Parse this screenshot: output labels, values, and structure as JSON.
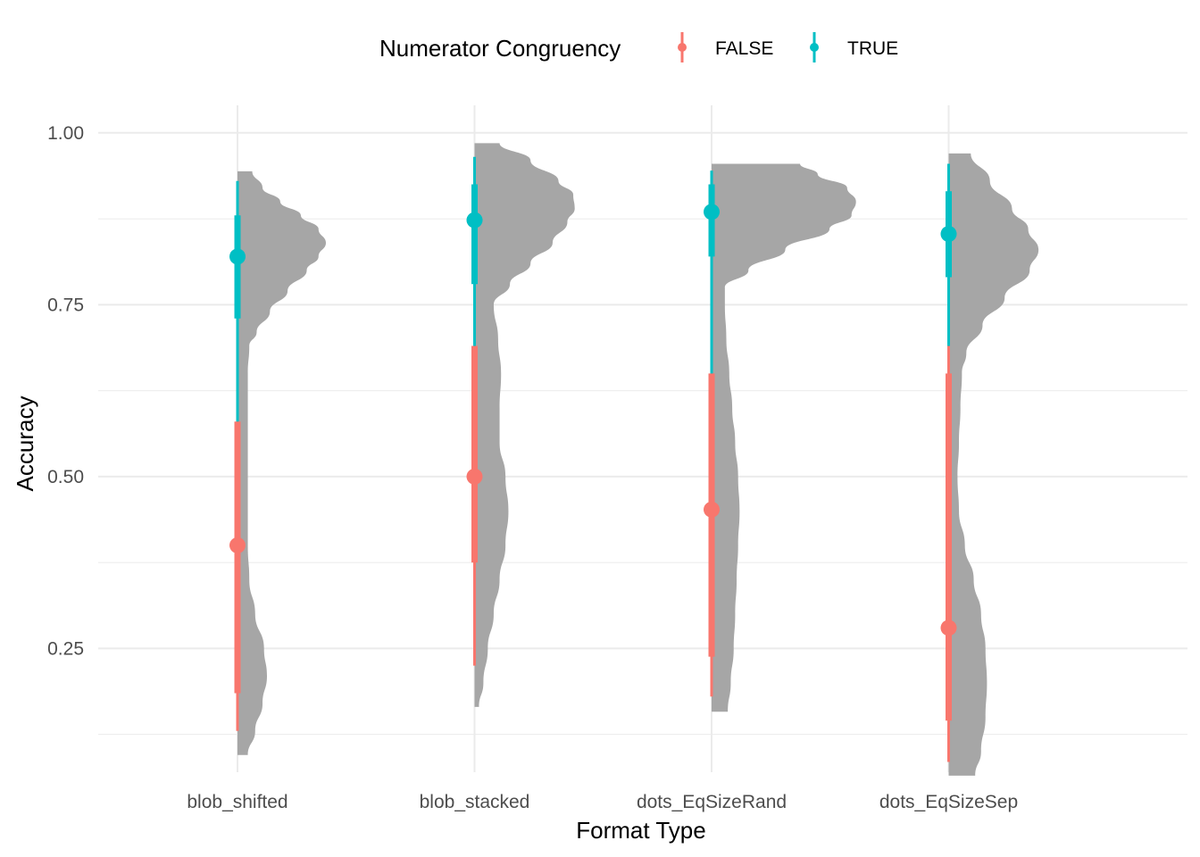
{
  "chart_data": {
    "type": "violin",
    "title": "",
    "xlabel": "Format Type",
    "ylabel": "Accuracy",
    "categories": [
      "blob_shifted",
      "blob_stacked",
      "dots_EqSizeRand",
      "dots_EqSizeSep"
    ],
    "ylim": [
      0.07,
      1.04
    ],
    "yticks": [
      0.25,
      0.5,
      0.75,
      1.0
    ],
    "ytick_labels": [
      "0.25",
      "0.50",
      "0.75",
      "1.00"
    ],
    "grid": true,
    "legend": {
      "title": "Numerator Congruency",
      "position": "top",
      "entries": [
        {
          "label": "FALSE",
          "color": "#F8766D"
        },
        {
          "label": "TRUE",
          "color": "#00BFC4"
        }
      ]
    },
    "violin_color": "#a6a6a6",
    "violins": [
      {
        "category": "blob_shifted",
        "profile": [
          [
            0.095,
            0.07
          ],
          [
            0.13,
            0.12
          ],
          [
            0.17,
            0.17
          ],
          [
            0.21,
            0.2
          ],
          [
            0.25,
            0.18
          ],
          [
            0.3,
            0.12
          ],
          [
            0.35,
            0.08
          ],
          [
            0.4,
            0.07
          ],
          [
            0.45,
            0.07
          ],
          [
            0.5,
            0.07
          ],
          [
            0.55,
            0.07
          ],
          [
            0.6,
            0.07
          ],
          [
            0.65,
            0.07
          ],
          [
            0.69,
            0.08
          ],
          [
            0.71,
            0.13
          ],
          [
            0.74,
            0.22
          ],
          [
            0.77,
            0.34
          ],
          [
            0.8,
            0.47
          ],
          [
            0.82,
            0.55
          ],
          [
            0.84,
            0.6
          ],
          [
            0.86,
            0.55
          ],
          [
            0.88,
            0.43
          ],
          [
            0.9,
            0.29
          ],
          [
            0.92,
            0.17
          ],
          [
            0.944,
            0.1
          ]
        ]
      },
      {
        "category": "blob_stacked",
        "profile": [
          [
            0.165,
            0.03
          ],
          [
            0.2,
            0.06
          ],
          [
            0.25,
            0.09
          ],
          [
            0.3,
            0.13
          ],
          [
            0.35,
            0.17
          ],
          [
            0.4,
            0.21
          ],
          [
            0.45,
            0.23
          ],
          [
            0.5,
            0.21
          ],
          [
            0.55,
            0.17
          ],
          [
            0.6,
            0.17
          ],
          [
            0.65,
            0.18
          ],
          [
            0.7,
            0.16
          ],
          [
            0.75,
            0.13
          ],
          [
            0.78,
            0.24
          ],
          [
            0.81,
            0.38
          ],
          [
            0.84,
            0.53
          ],
          [
            0.87,
            0.63
          ],
          [
            0.89,
            0.68
          ],
          [
            0.91,
            0.67
          ],
          [
            0.93,
            0.57
          ],
          [
            0.96,
            0.38
          ],
          [
            0.985,
            0.17
          ]
        ]
      },
      {
        "category": "dots_EqSizeRand",
        "profile": [
          [
            0.158,
            0.11
          ],
          [
            0.2,
            0.13
          ],
          [
            0.25,
            0.15
          ],
          [
            0.3,
            0.16
          ],
          [
            0.35,
            0.17
          ],
          [
            0.4,
            0.18
          ],
          [
            0.45,
            0.19
          ],
          [
            0.5,
            0.18
          ],
          [
            0.55,
            0.16
          ],
          [
            0.6,
            0.14
          ],
          [
            0.65,
            0.12
          ],
          [
            0.7,
            0.1
          ],
          [
            0.75,
            0.09
          ],
          [
            0.775,
            0.09
          ],
          [
            0.8,
            0.25
          ],
          [
            0.83,
            0.5
          ],
          [
            0.86,
            0.8
          ],
          [
            0.88,
            0.95
          ],
          [
            0.9,
            0.98
          ],
          [
            0.92,
            0.92
          ],
          [
            0.94,
            0.72
          ],
          [
            0.955,
            0.6
          ]
        ]
      },
      {
        "category": "dots_EqSizeSep",
        "profile": [
          [
            0.065,
            0.18
          ],
          [
            0.1,
            0.22
          ],
          [
            0.15,
            0.25
          ],
          [
            0.2,
            0.26
          ],
          [
            0.25,
            0.25
          ],
          [
            0.3,
            0.22
          ],
          [
            0.35,
            0.17
          ],
          [
            0.4,
            0.11
          ],
          [
            0.45,
            0.07
          ],
          [
            0.5,
            0.06
          ],
          [
            0.55,
            0.07
          ],
          [
            0.6,
            0.08
          ],
          [
            0.65,
            0.09
          ],
          [
            0.68,
            0.12
          ],
          [
            0.72,
            0.23
          ],
          [
            0.76,
            0.38
          ],
          [
            0.8,
            0.55
          ],
          [
            0.83,
            0.61
          ],
          [
            0.86,
            0.54
          ],
          [
            0.89,
            0.43
          ],
          [
            0.93,
            0.28
          ],
          [
            0.97,
            0.15
          ]
        ]
      }
    ],
    "series": [
      {
        "name": "FALSE",
        "color": "#F8766D",
        "points": [
          {
            "category": "blob_shifted",
            "point": 0.4,
            "inner": [
              0.185,
              0.58
            ],
            "outer": [
              0.13,
              0.68
            ]
          },
          {
            "category": "blob_stacked",
            "point": 0.5,
            "inner": [
              0.375,
              0.69
            ],
            "outer": [
              0.225,
              0.7
            ]
          },
          {
            "category": "dots_EqSizeRand",
            "point": 0.452,
            "inner": [
              0.238,
              0.65
            ],
            "outer": [
              0.18,
              0.73
            ]
          },
          {
            "category": "dots_EqSizeSep",
            "point": 0.28,
            "inner": [
              0.145,
              0.65
            ],
            "outer": [
              0.085,
              0.69
            ]
          }
        ]
      },
      {
        "name": "TRUE",
        "color": "#00BFC4",
        "points": [
          {
            "category": "blob_shifted",
            "point": 0.82,
            "inner": [
              0.73,
              0.88
            ],
            "outer": [
              0.58,
              0.93
            ]
          },
          {
            "category": "blob_stacked",
            "point": 0.873,
            "inner": [
              0.78,
              0.925
            ],
            "outer": [
              0.69,
              0.965
            ]
          },
          {
            "category": "dots_EqSizeRand",
            "point": 0.885,
            "inner": [
              0.82,
              0.925
            ],
            "outer": [
              0.65,
              0.945
            ]
          },
          {
            "category": "dots_EqSizeSep",
            "point": 0.853,
            "inner": [
              0.79,
              0.915
            ],
            "outer": [
              0.69,
              0.955
            ]
          }
        ]
      }
    ]
  }
}
